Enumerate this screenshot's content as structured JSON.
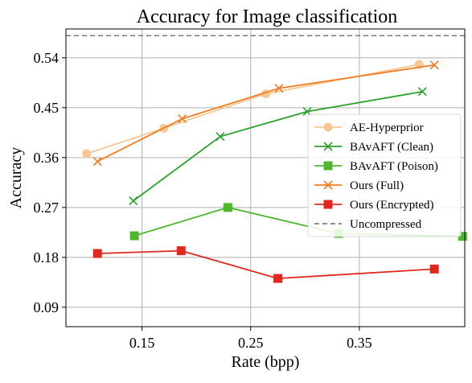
{
  "chart_data": {
    "type": "line",
    "title": "Accuracy for Image classification",
    "xlabel": "Rate (bpp)",
    "ylabel": "Accuracy",
    "xlim": [
      0.08,
      0.447
    ],
    "ylim": [
      0.055,
      0.592
    ],
    "xticks": [
      0.15,
      0.25,
      0.35
    ],
    "xtick_labels": [
      "0.15",
      "0.25",
      "0.35"
    ],
    "yticks": [
      0.09,
      0.18,
      0.27,
      0.36,
      0.45,
      0.54
    ],
    "ytick_labels": [
      "0.09",
      "0.18",
      "0.27",
      "0.36",
      "0.45",
      "0.54"
    ],
    "grid": true,
    "legend_position": "center-right",
    "series": [
      {
        "name": "AE-Hyperprior",
        "color": "#f7c896",
        "marker": "circle",
        "line": "solid",
        "x": [
          0.099,
          0.17,
          0.264,
          0.405
        ],
        "y": [
          0.367,
          0.413,
          0.475,
          0.528
        ]
      },
      {
        "name": "BAvAFT (Clean)",
        "color": "#2ca02c",
        "marker": "x",
        "line": "solid",
        "x": [
          0.142,
          0.222,
          0.302,
          0.408
        ],
        "y": [
          0.282,
          0.398,
          0.443,
          0.479
        ]
      },
      {
        "name": "BAvAFT (Poison)",
        "color": "#4db82e",
        "marker": "square",
        "line": "solid",
        "x": [
          0.143,
          0.229,
          0.331,
          0.445
        ],
        "y": [
          0.219,
          0.27,
          0.223,
          0.218
        ]
      },
      {
        "name": "Ours (Full)",
        "color": "#f47c20",
        "marker": "x",
        "line": "solid",
        "x": [
          0.109,
          0.187,
          0.276,
          0.419
        ],
        "y": [
          0.353,
          0.43,
          0.485,
          0.527
        ]
      },
      {
        "name": "Ours (Encrypted)",
        "color": "#e0281e",
        "marker": "square",
        "line": "solid",
        "x": [
          0.109,
          0.186,
          0.275,
          0.419
        ],
        "y": [
          0.187,
          0.192,
          0.142,
          0.159
        ]
      }
    ],
    "reference_lines": [
      {
        "name": "Uncompressed",
        "color": "#808080",
        "line": "dashed",
        "y": 0.58
      }
    ]
  }
}
